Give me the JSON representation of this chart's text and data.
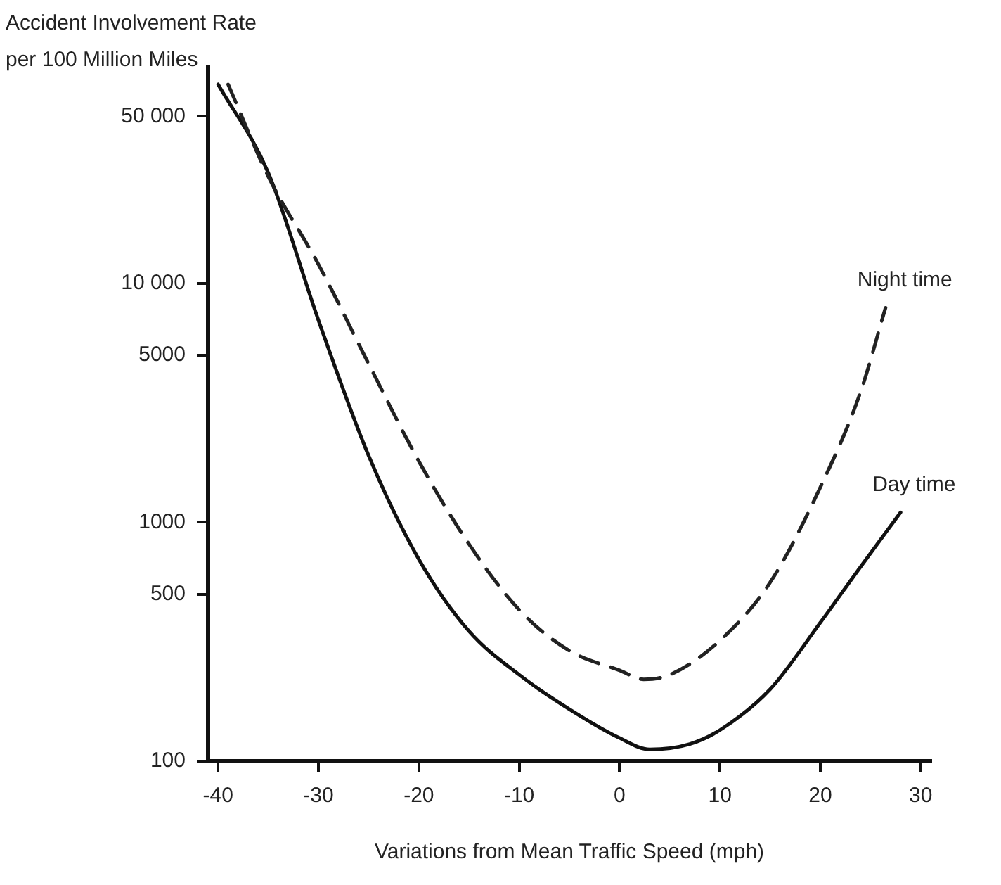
{
  "chart_data": {
    "type": "line",
    "ylabel": "Accident Involvement Rate per 100 Million Miles",
    "xlabel": "Variations from Mean Traffic Speed (mph)",
    "log": "y",
    "grid": false,
    "legend": false,
    "marker": "none",
    "xlim": [
      -41,
      31
    ],
    "xticks": [
      -40,
      -30,
      -20,
      -10,
      0,
      10,
      20,
      30
    ],
    "ylim": [
      100,
      80000
    ],
    "yticks": [
      100,
      500,
      1000,
      5000,
      {
        "value": 10000,
        "label": "10 000"
      },
      {
        "value": 50000,
        "label": "50 000"
      }
    ],
    "series": [
      {
        "name": "Night time",
        "color": "#222222",
        "line_style": "dashed",
        "x": [
          -39,
          -35,
          -30,
          -25,
          -20,
          -15,
          -10,
          -5,
          0,
          2.4,
          5,
          10,
          15,
          20,
          24,
          26.5
        ],
        "values": [
          68000,
          28000,
          12000,
          4600,
          1800,
          810,
          430,
          290,
          240,
          220,
          230,
          320,
          560,
          1400,
          3500,
          7900
        ]
      },
      {
        "name": "Day time",
        "color": "#111111",
        "line_style": "solid",
        "x": [
          -40,
          -35,
          -30,
          -25,
          -20,
          -15,
          -10,
          -5,
          0,
          3,
          7,
          10,
          15,
          20,
          24,
          28
        ],
        "values": [
          68000,
          29000,
          7000,
          1900,
          700,
          350,
          230,
          165,
          125,
          112,
          118,
          135,
          200,
          380,
          650,
          1100
        ]
      }
    ]
  }
}
